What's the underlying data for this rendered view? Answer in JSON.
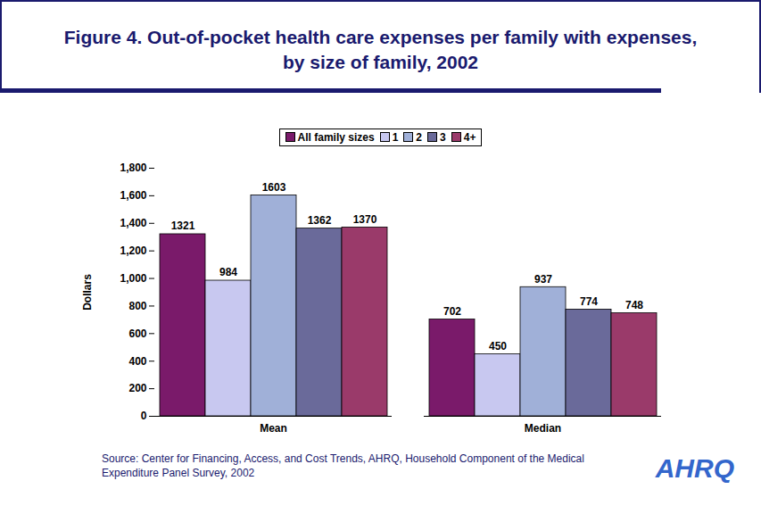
{
  "chart_data": {
    "type": "bar",
    "title": "Figure 4. Out-of-pocket health care expenses per family with expenses, by size of family, 2002",
    "y_label": "Dollars",
    "categories": [
      "Mean",
      "Median"
    ],
    "series": [
      {
        "name": "All family sizes",
        "color": "#7a1a6a",
        "values": [
          1321,
          702
        ]
      },
      {
        "name": "1",
        "color": "#c8c8f0",
        "values": [
          984,
          450
        ]
      },
      {
        "name": "2",
        "color": "#a0b0d8",
        "values": [
          1603,
          937
        ]
      },
      {
        "name": "3",
        "color": "#6a6a9a",
        "values": [
          1362,
          774
        ]
      },
      {
        "name": "4+",
        "color": "#9a3a6a",
        "values": [
          1370,
          748
        ]
      }
    ],
    "ylim": [
      0,
      1800
    ],
    "yticks": [
      0,
      200,
      400,
      600,
      800,
      1000,
      1200,
      1400,
      1600,
      1800
    ],
    "legend": "top",
    "data_labels": true,
    "source": "Source: Center for Financing, Access, and Cost Trends, AHRQ, Household Component of the Medical Expenditure Panel Survey, 2002",
    "logo": "AHRQ"
  }
}
